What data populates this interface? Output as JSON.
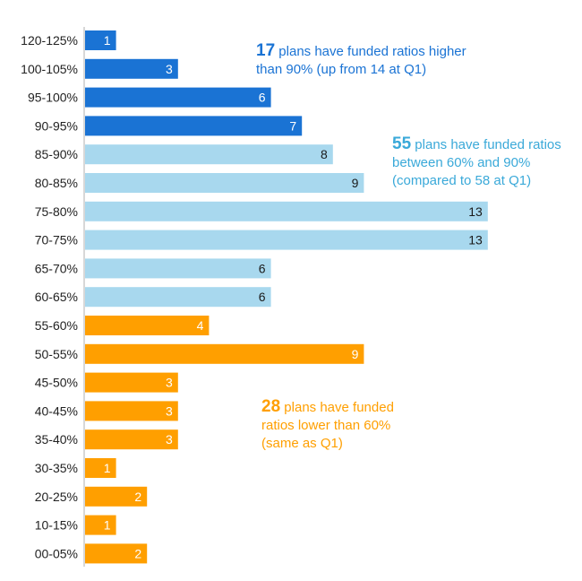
{
  "chart_data": {
    "type": "bar",
    "orientation": "horizontal",
    "categories": [
      "120-125%",
      "100-105%",
      "95-100%",
      "90-95%",
      "85-90%",
      "80-85%",
      "75-80%",
      "70-75%",
      "65-70%",
      "60-65%",
      "55-60%",
      "50-55%",
      "45-50%",
      "40-45%",
      "35-40%",
      "30-35%",
      "20-25%",
      "10-15%",
      "00-05%"
    ],
    "values": [
      1,
      3,
      6,
      7,
      8,
      9,
      13,
      13,
      6,
      6,
      4,
      9,
      3,
      3,
      3,
      1,
      2,
      1,
      2
    ],
    "groups": [
      "high",
      "high",
      "high",
      "high",
      "mid",
      "mid",
      "mid",
      "mid",
      "mid",
      "mid",
      "low",
      "low",
      "low",
      "low",
      "low",
      "low",
      "low",
      "low",
      "low"
    ],
    "colors": {
      "high": "#1a73d4",
      "mid": "#a8d8ee",
      "low": "#ff9f00",
      "high_label": "#ffffff",
      "mid_label": "#1a1a1a",
      "low_label": "#ffffff",
      "high_text": "#1a73d4",
      "mid_text": "#3aa9d9",
      "low_text": "#ff9f00"
    },
    "xlim": [
      0,
      13
    ],
    "annotations": [
      {
        "group": "high",
        "number": "17",
        "lines": [
          " plans have funded ratios higher",
          "than 90% (up from 14 at Q1)"
        ]
      },
      {
        "group": "mid",
        "number": "55",
        "lines": [
          " plans have funded ratios",
          "between 60% and 90%",
          "(compared to 58 at Q1)"
        ]
      },
      {
        "group": "low",
        "number": "28",
        "lines": [
          " plans have funded",
          "ratios lower than 60%",
          "(same as Q1)"
        ]
      }
    ]
  }
}
